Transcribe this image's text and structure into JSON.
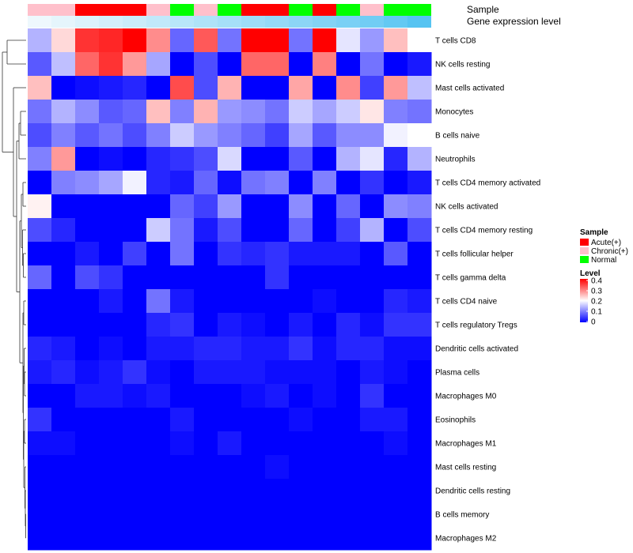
{
  "chart_data": {
    "type": "heatmap",
    "annotation_labels": [
      "Sample",
      "Gene expression level"
    ],
    "rows": [
      "T cells CD8",
      "NK cells resting",
      "Mast cells activated",
      "Monocytes",
      "B cells naive",
      "Neutrophils",
      "T cells CD4 memory activated",
      "NK cells activated",
      "T cells CD4 memory resting",
      "T cells follicular helper",
      "T cells gamma delta",
      "T cells CD4 naive",
      "T cells regulatory  Tregs",
      "Dendritic cells activated",
      "Plasma cells",
      "Macrophages M0",
      "Eosinophils",
      "Macrophages M1",
      "Mast cells resting",
      "Dendritic cells resting",
      "B cells memory",
      "Macrophages M2"
    ],
    "sample_groups": [
      "Chronic(+)",
      "Chronic(+)",
      "Acute(+)",
      "Acute(+)",
      "Acute(+)",
      "Chronic(+)",
      "Normal",
      "Chronic(+)",
      "Normal",
      "Acute(+)",
      "Acute(+)",
      "Normal",
      "Acute(+)",
      "Normal",
      "Chronic(+)",
      "Normal",
      "Normal"
    ],
    "expression_levels": [
      0.02,
      0.04,
      0.06,
      0.08,
      0.1,
      0.12,
      0.14,
      0.16,
      0.18,
      0.2,
      0.22,
      0.24,
      0.26,
      0.28,
      0.3,
      0.33,
      0.36
    ],
    "values": [
      [
        0.14,
        0.23,
        0.36,
        0.37,
        0.4,
        0.29,
        0.08,
        0.33,
        0.09,
        0.4,
        0.4,
        0.09,
        0.4,
        0.18,
        0.12,
        0.25,
        0.2
      ],
      [
        0.07,
        0.15,
        0.32,
        0.36,
        0.28,
        0.13,
        0.0,
        0.06,
        0.0,
        0.32,
        0.32,
        0.0,
        0.3,
        0.0,
        0.09,
        0.0,
        0.02
      ],
      [
        0.25,
        0.0,
        0.01,
        0.02,
        0.03,
        0.0,
        0.34,
        0.06,
        0.26,
        0.0,
        0.0,
        0.27,
        0.0,
        0.29,
        0.05,
        0.28,
        0.15
      ],
      [
        0.09,
        0.14,
        0.11,
        0.07,
        0.08,
        0.25,
        0.1,
        0.26,
        0.12,
        0.11,
        0.09,
        0.16,
        0.13,
        0.16,
        0.22,
        0.1,
        0.09
      ],
      [
        0.06,
        0.1,
        0.07,
        0.09,
        0.06,
        0.1,
        0.16,
        0.12,
        0.1,
        0.08,
        0.05,
        0.13,
        0.07,
        0.11,
        0.11,
        0.19,
        0.2
      ],
      [
        0.1,
        0.28,
        0.0,
        0.01,
        0.0,
        0.03,
        0.04,
        0.06,
        0.17,
        0.0,
        0.0,
        0.07,
        0.0,
        0.14,
        0.18,
        0.03,
        0.14
      ],
      [
        0.0,
        0.1,
        0.11,
        0.13,
        0.19,
        0.03,
        0.02,
        0.08,
        0.01,
        0.09,
        0.1,
        0.0,
        0.1,
        0.0,
        0.04,
        0.0,
        0.02
      ],
      [
        0.21,
        0.0,
        0.0,
        0.0,
        0.0,
        0.0,
        0.08,
        0.05,
        0.12,
        0.0,
        0.0,
        0.11,
        0.0,
        0.08,
        0.0,
        0.11,
        0.1
      ],
      [
        0.06,
        0.03,
        0.0,
        0.0,
        0.0,
        0.16,
        0.09,
        0.02,
        0.06,
        0.0,
        0.0,
        0.08,
        0.0,
        0.05,
        0.14,
        0.0,
        0.06
      ],
      [
        0.0,
        0.0,
        0.02,
        0.0,
        0.05,
        0.0,
        0.09,
        0.0,
        0.04,
        0.03,
        0.04,
        0.02,
        0.02,
        0.02,
        0.0,
        0.07,
        0.0
      ],
      [
        0.08,
        0.0,
        0.06,
        0.04,
        0.0,
        0.0,
        0.0,
        0.0,
        0.0,
        0.0,
        0.04,
        0.0,
        0.0,
        0.0,
        0.0,
        0.0,
        0.0
      ],
      [
        0.0,
        0.0,
        0.0,
        0.02,
        0.0,
        0.09,
        0.02,
        0.0,
        0.0,
        0.0,
        0.0,
        0.0,
        0.01,
        0.0,
        0.0,
        0.03,
        0.02
      ],
      [
        0.0,
        0.0,
        0.0,
        0.0,
        0.0,
        0.03,
        0.04,
        0.0,
        0.02,
        0.01,
        0.0,
        0.02,
        0.0,
        0.03,
        0.01,
        0.04,
        0.04
      ],
      [
        0.03,
        0.02,
        0.0,
        0.01,
        0.0,
        0.02,
        0.02,
        0.03,
        0.03,
        0.02,
        0.02,
        0.04,
        0.01,
        0.03,
        0.03,
        0.01,
        0.01
      ],
      [
        0.02,
        0.03,
        0.01,
        0.02,
        0.04,
        0.01,
        0.0,
        0.02,
        0.02,
        0.02,
        0.01,
        0.01,
        0.01,
        0.0,
        0.02,
        0.01,
        0.0
      ],
      [
        0.0,
        0.0,
        0.02,
        0.02,
        0.01,
        0.02,
        0.0,
        0.0,
        0.0,
        0.01,
        0.02,
        0.0,
        0.01,
        0.0,
        0.04,
        0.0,
        0.0
      ],
      [
        0.04,
        0.0,
        0.0,
        0.0,
        0.0,
        0.0,
        0.02,
        0.0,
        0.0,
        0.0,
        0.0,
        0.01,
        0.0,
        0.0,
        0.02,
        0.02,
        0.0
      ],
      [
        0.01,
        0.01,
        0.0,
        0.0,
        0.0,
        0.0,
        0.01,
        0.0,
        0.02,
        0.0,
        0.0,
        0.0,
        0.0,
        0.0,
        0.0,
        0.01,
        0.0
      ],
      [
        0.0,
        0.0,
        0.0,
        0.0,
        0.0,
        0.0,
        0.0,
        0.0,
        0.0,
        0.0,
        0.01,
        0.0,
        0.0,
        0.0,
        0.0,
        0.0,
        0.0
      ],
      [
        0.0,
        0.0,
        0.0,
        0.0,
        0.0,
        0.0,
        0.0,
        0.0,
        0.0,
        0.0,
        0.0,
        0.0,
        0.0,
        0.0,
        0.0,
        0.0,
        0.0
      ],
      [
        0.0,
        0.0,
        0.0,
        0.0,
        0.0,
        0.0,
        0.0,
        0.0,
        0.0,
        0.0,
        0.0,
        0.0,
        0.0,
        0.0,
        0.0,
        0.0,
        0.0
      ],
      [
        0.0,
        0.0,
        0.0,
        0.0,
        0.0,
        0.0,
        0.0,
        0.0,
        0.0,
        0.0,
        0.0,
        0.0,
        0.0,
        0.0,
        0.0,
        0.0,
        0.0
      ]
    ],
    "color_scale": {
      "min": 0,
      "max": 0.4,
      "colors": [
        "#0000ff",
        "#ffffff",
        "#ff0000"
      ]
    },
    "legend_sample": {
      "title": "Sample",
      "items": [
        {
          "label": "Acute(+)",
          "color": "#ff0000"
        },
        {
          "label": "Chronic(+)",
          "color": "#ffc0cb"
        },
        {
          "label": "Normal",
          "color": "#00ff00"
        }
      ]
    },
    "legend_level": {
      "title": "Level",
      "ticks": [
        "0.4",
        "0.3",
        "0.2",
        "0.1",
        "0"
      ]
    },
    "expression_colors": [
      "#eef8fd",
      "#56c4f2"
    ],
    "dendrogram": "row clustering tree on left",
    "legend_placement": "right"
  }
}
